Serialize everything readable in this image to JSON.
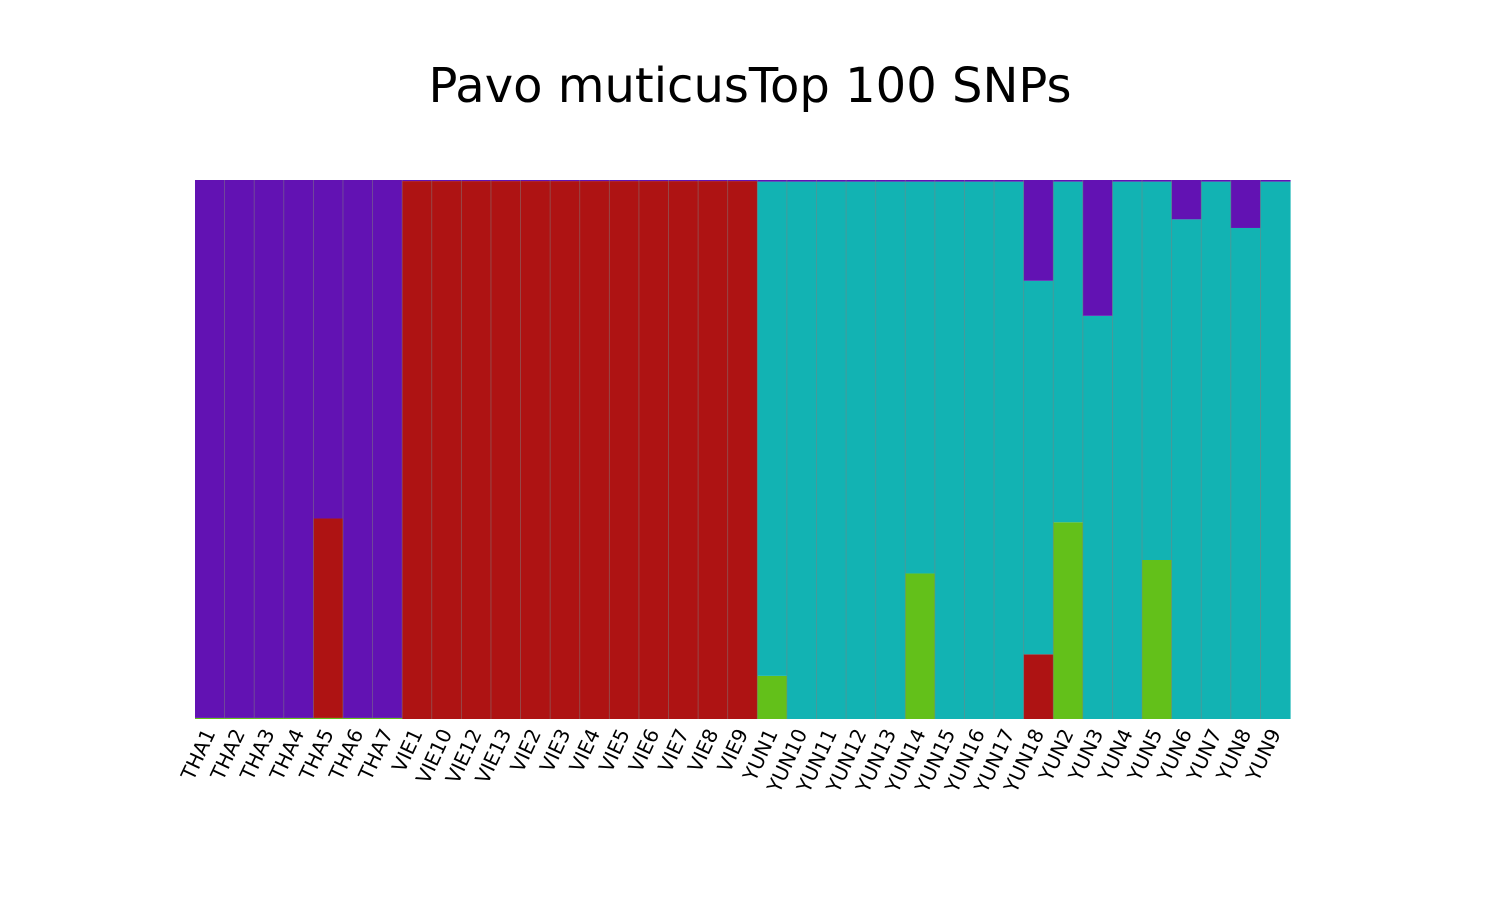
{
  "chart_data": {
    "type": "bar",
    "stacked": true,
    "title": "Pavo muticusTop 100 SNPs",
    "xlabel": "",
    "ylabel": "",
    "ylim": [
      0,
      1
    ],
    "grid": false,
    "legend": "none",
    "categories": [
      "THA1",
      "THA2",
      "THA3",
      "THA4",
      "THA5",
      "THA6",
      "THA7",
      "VIE1",
      "VIE10",
      "VIE12",
      "VIE13",
      "VIE2",
      "VIE3",
      "VIE4",
      "VIE5",
      "VIE6",
      "VIE7",
      "VIE8",
      "VIE9",
      "YUN1",
      "YUN10",
      "YUN11",
      "YUN12",
      "YUN13",
      "YUN14",
      "YUN15",
      "YUN16",
      "YUN17",
      "YUN18",
      "YUN2",
      "YUN3",
      "YUN4",
      "YUN5",
      "YUN6",
      "YUN7",
      "YUN8",
      "YUN9"
    ],
    "series": [
      {
        "color": "#63c01a",
        "values": [
          0.002,
          0.002,
          0.002,
          0.002,
          0.002,
          0.002,
          0.002,
          0,
          0,
          0,
          0,
          0,
          0,
          0,
          0,
          0,
          0,
          0,
          0,
          0.08,
          0,
          0,
          0,
          0,
          0.27,
          0,
          0,
          0,
          0,
          0.365,
          0,
          0,
          0.295,
          0,
          0,
          0,
          0
        ]
      },
      {
        "color": "#ae1313",
        "values": [
          0,
          0,
          0,
          0,
          0.37,
          0,
          0,
          0.998,
          0.998,
          0.998,
          0.998,
          0.998,
          0.998,
          0.998,
          0.998,
          0.998,
          0.998,
          0.998,
          0.998,
          0,
          0,
          0,
          0,
          0,
          0,
          0,
          0,
          0,
          0.12,
          0,
          0,
          0,
          0,
          0,
          0,
          0,
          0
        ]
      },
      {
        "color": "#12b3b3",
        "values": [
          0,
          0,
          0,
          0,
          0,
          0,
          0,
          0,
          0,
          0,
          0,
          0,
          0,
          0,
          0,
          0,
          0,
          0,
          0,
          0.917,
          0.997,
          0.997,
          0.997,
          0.997,
          0.727,
          0.997,
          0.997,
          0.997,
          0.693,
          0.632,
          0.748,
          0.997,
          0.702,
          0.927,
          0.997,
          0.911,
          0.997
        ]
      },
      {
        "color": "#6212b3",
        "values": [
          0.998,
          0.998,
          0.998,
          0.998,
          0.628,
          0.998,
          0.998,
          0.002,
          0.002,
          0.002,
          0.002,
          0.002,
          0.002,
          0.002,
          0.002,
          0.002,
          0.002,
          0.002,
          0.002,
          0.003,
          0.003,
          0.003,
          0.003,
          0.003,
          0.003,
          0.003,
          0.003,
          0.003,
          0.187,
          0.003,
          0.252,
          0.003,
          0.003,
          0.073,
          0.003,
          0.089,
          0.003
        ]
      }
    ]
  }
}
